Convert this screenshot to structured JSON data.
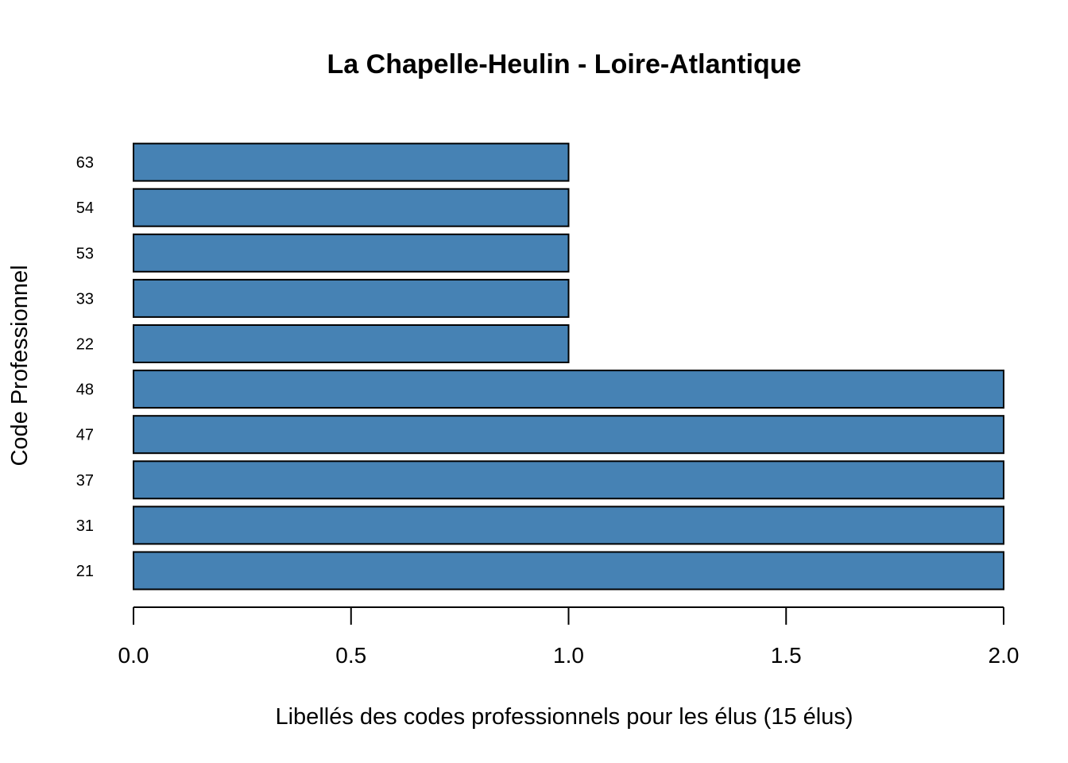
{
  "chart_data": {
    "type": "bar",
    "orientation": "horizontal",
    "title": "La Chapelle-Heulin - Loire-Atlantique",
    "xlabel": "Libellés des codes professionnels pour les élus (15 élus)",
    "ylabel": "Code Professionnel",
    "categories": [
      "21",
      "31",
      "37",
      "47",
      "48",
      "22",
      "33",
      "53",
      "54",
      "63"
    ],
    "values": [
      2,
      2,
      2,
      2,
      2,
      1,
      1,
      1,
      1,
      1
    ],
    "xlim": [
      0,
      2
    ],
    "xticks": [
      0.0,
      0.5,
      1.0,
      1.5,
      2.0
    ],
    "xtick_labels": [
      "0.0",
      "0.5",
      "1.0",
      "1.5",
      "2.0"
    ],
    "bar_color": "#4682b4",
    "bar_edge_color": "#000000",
    "grid": false,
    "legend": "none"
  }
}
